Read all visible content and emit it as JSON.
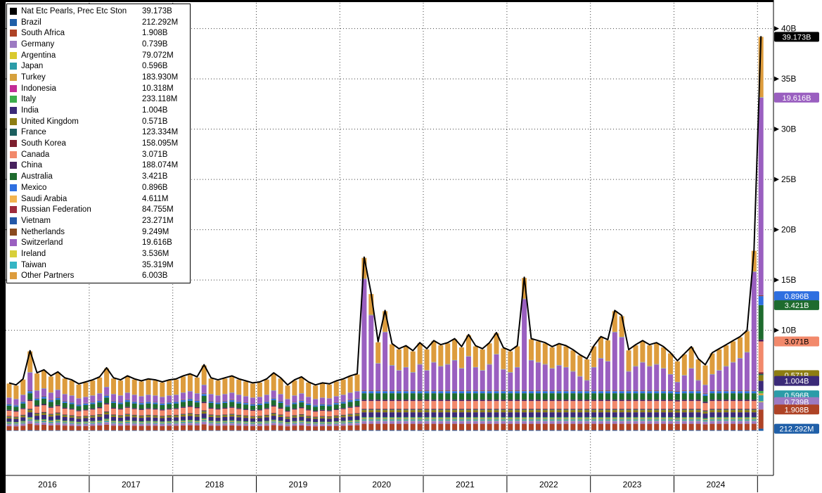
{
  "window": {
    "background": "#ffffff",
    "accent_grid_color": "#000000"
  },
  "legend": {
    "items": [
      {
        "label": "Nat Etc Pearls, Prec Etc Ston",
        "value": "39.173B",
        "color": "#000000"
      },
      {
        "label": "Brazil",
        "value": "212.292M",
        "color": "#1f5fa8"
      },
      {
        "label": "South Africa",
        "value": "1.908B",
        "color": "#ae4326"
      },
      {
        "label": "Germany",
        "value": "0.739B",
        "color": "#9c7ac2"
      },
      {
        "label": "Argentina",
        "value": "79.072M",
        "color": "#d9c92e"
      },
      {
        "label": "Japan",
        "value": "0.596B",
        "color": "#2b9ca8"
      },
      {
        "label": "Turkey",
        "value": "183.930M",
        "color": "#d6a13d"
      },
      {
        "label": "Indonesia",
        "value": "10.318M",
        "color": "#c22c96"
      },
      {
        "label": "Italy",
        "value": "233.118M",
        "color": "#3cae4c"
      },
      {
        "label": "India",
        "value": "1.004B",
        "color": "#3b2a78"
      },
      {
        "label": "United Kingdom",
        "value": "0.571B",
        "color": "#8d7d12"
      },
      {
        "label": "France",
        "value": "123.334M",
        "color": "#1c5f5f"
      },
      {
        "label": "South Korea",
        "value": "158.095M",
        "color": "#7c1f2e"
      },
      {
        "label": "Canada",
        "value": "3.071B",
        "color": "#f2896b"
      },
      {
        "label": "China",
        "value": "188.074M",
        "color": "#47215e"
      },
      {
        "label": "Australia",
        "value": "3.421B",
        "color": "#1e6b2e"
      },
      {
        "label": "Mexico",
        "value": "0.896B",
        "color": "#2e6fe0"
      },
      {
        "label": "Saudi Arabia",
        "value": "4.611M",
        "color": "#f2b34e"
      },
      {
        "label": "Russian Federation",
        "value": "84.755M",
        "color": "#9e2b3c"
      },
      {
        "label": "Vietnam",
        "value": "23.271M",
        "color": "#2458a8"
      },
      {
        "label": "Netherlands",
        "value": "9.249M",
        "color": "#8a4a1e"
      },
      {
        "label": "Switzerland",
        "value": "19.616B",
        "color": "#9a5fc0"
      },
      {
        "label": "Ireland",
        "value": "3.536M",
        "color": "#d8cf3a"
      },
      {
        "label": "Taiwan",
        "value": "35.319M",
        "color": "#35b5c4"
      },
      {
        "label": "Other Partners",
        "value": "6.003B",
        "color": "#dd9c3d"
      }
    ]
  },
  "chart_data": {
    "type": "bar",
    "subtype": "stacked-monthly-bars-with-total-line",
    "title": "Nat Etc Pearls, Prec Etc Ston",
    "frequency": "monthly",
    "months_start": "2016-01",
    "months_end": "2025-01",
    "totals_billions": [
      4.7,
      4.5,
      5.1,
      7.9,
      5.7,
      6.0,
      5.4,
      5.8,
      5.2,
      5.0,
      4.6,
      4.8,
      5.0,
      5.3,
      6.2,
      5.2,
      5.0,
      5.4,
      5.1,
      4.9,
      5.1,
      5.0,
      4.8,
      5.0,
      5.1,
      5.4,
      5.6,
      5.3,
      6.5,
      5.2,
      5.0,
      5.2,
      5.4,
      5.1,
      4.9,
      4.7,
      4.8,
      5.1,
      5.7,
      5.2,
      4.5,
      5.0,
      5.3,
      4.8,
      4.5,
      4.7,
      4.6,
      4.9,
      5.1,
      5.4,
      5.6,
      17.2,
      13.6,
      8.8,
      11.9,
      8.6,
      8.1,
      8.4,
      7.9,
      8.7,
      8.1,
      8.9,
      8.5,
      8.7,
      9.1,
      8.3,
      9.5,
      8.4,
      8.1,
      8.7,
      9.7,
      8.2,
      7.9,
      8.4,
      15.2,
      9.1,
      8.9,
      8.7,
      8.3,
      8.6,
      8.4,
      8.0,
      7.5,
      7.1,
      8.4,
      9.3,
      9.0,
      11.9,
      11.4,
      8.0,
      8.5,
      8.9,
      8.5,
      8.7,
      8.3,
      7.7,
      6.9,
      7.6,
      8.3,
      7.1,
      6.5,
      7.7,
      8.1,
      8.5,
      8.9,
      9.3,
      9.9,
      17.9,
      39.173
    ],
    "total_line": {
      "label": "Nat Etc Pearls, Prec Etc Ston",
      "color": "#000000",
      "latest": "39.173B"
    },
    "final_month_values_billions": {
      "Brazil": 0.212292,
      "South Africa": 1.908,
      "Germany": 0.739,
      "Argentina": 0.079072,
      "Japan": 0.596,
      "Turkey": 0.18393,
      "Indonesia": 0.010318,
      "Italy": 0.233118,
      "India": 1.004,
      "United Kingdom": 0.571,
      "France": 0.123334,
      "South Korea": 0.158095,
      "Canada": 3.071,
      "China": 0.188074,
      "Australia": 3.421,
      "Mexico": 0.896,
      "Saudi Arabia": 0.004611,
      "Russian Federation": 0.084755,
      "Vietnam": 0.023271,
      "Netherlands": 0.009249,
      "Switzerland": 19.616,
      "Ireland": 0.003536,
      "Taiwan": 0.035319,
      "Other Partners": 6.003
    },
    "baseline_shares_per_5B": {
      "Brazil": 0.05,
      "South Africa": 0.45,
      "Germany": 0.2,
      "Argentina": 0.02,
      "Japan": 0.1,
      "Turkey": 0.06,
      "Indonesia": 0.01,
      "Italy": 0.08,
      "India": 0.35,
      "United Kingdom": 0.15,
      "France": 0.05,
      "South Korea": 0.05,
      "Canada": 0.55,
      "China": 0.1,
      "Australia": 0.45,
      "Mexico": 0.15,
      "Saudi Arabia": 0.01,
      "Russian Federation": 0.04,
      "Vietnam": 0.02,
      "Netherlands": 0.01,
      "Switzerland": 0.6,
      "Ireland": 0.01,
      "Taiwan": 0.02,
      "Other Partners": 1.47
    },
    "spike_overflow_series": "Switzerland",
    "y_axis": {
      "side": "right",
      "tick_labels": [
        "10B",
        "15B",
        "20B",
        "25B",
        "30B",
        "35B",
        "40B"
      ],
      "tick_values": [
        10,
        15,
        20,
        25,
        30,
        35,
        40
      ],
      "range_billions": [
        0,
        42.6
      ],
      "grid": "dotted"
    },
    "x_axis": {
      "year_labels": [
        "2016",
        "2017",
        "2018",
        "2019",
        "2020",
        "2021",
        "2022",
        "2023",
        "2024"
      ],
      "grid": "dotted"
    },
    "badges": [
      {
        "label": "39.173B",
        "color": "#000000",
        "cum": 39.173
      },
      {
        "label": "19.616B",
        "color": "#9a5fc0",
        "cum": 33.131
      },
      {
        "label": "0.896B",
        "color": "#2e6fe0",
        "cum": 13.393
      },
      {
        "label": "3.421B",
        "color": "#1e6b2e",
        "cum": 12.497
      },
      {
        "label": "3.071B",
        "color": "#f2896b",
        "cum": 8.888
      },
      {
        "label": "0.571B",
        "color": "#8d7d12",
        "cum": 5.536
      },
      {
        "label": "1.004B",
        "color": "#3b2a78",
        "cum": 4.965
      },
      {
        "label": "0.596B",
        "color": "#2b9ca8",
        "cum": 3.534
      },
      {
        "label": "0.739B",
        "color": "#9c7ac2",
        "cum": 2.859
      },
      {
        "label": "1.908B",
        "color": "#ae4326",
        "cum": 2.12
      },
      {
        "label": "212.292M",
        "color": "#1f5fa8",
        "cum": 0.212
      }
    ]
  }
}
